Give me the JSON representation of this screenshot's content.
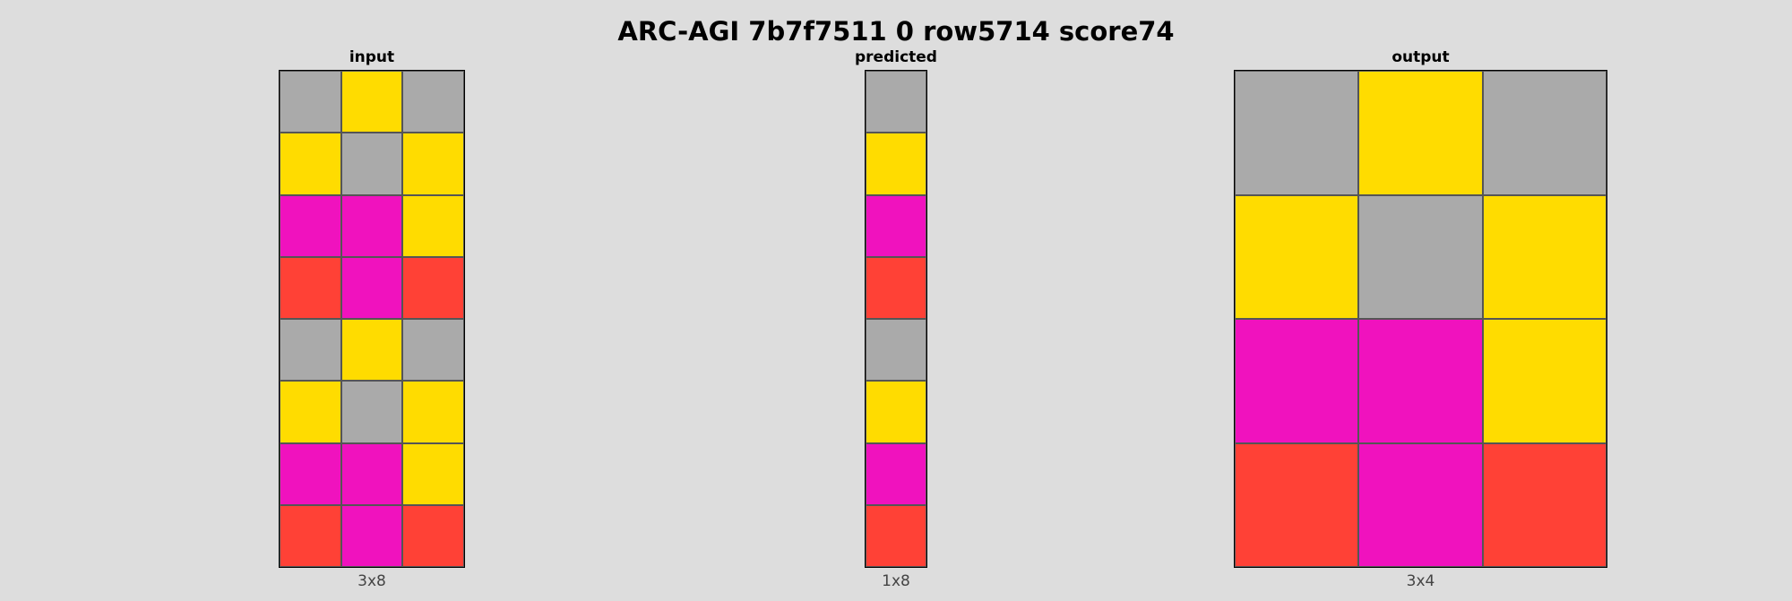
{
  "title": "ARC-AGI 7b7f7511 0 row5714 score74",
  "colors": {
    "0": "#000000",
    "1": "#0074d9",
    "2": "#ff4136",
    "3": "#2ecc40",
    "4": "#ffdc00",
    "5": "#aaaaaa",
    "6": "#f012be",
    "7": "#ff851b",
    "8": "#7fdbff",
    "9": "#870c25"
  },
  "panels": {
    "input": {
      "label": "input",
      "dims": "3x8",
      "grid": [
        [
          5,
          4,
          5
        ],
        [
          4,
          5,
          4
        ],
        [
          6,
          6,
          4
        ],
        [
          2,
          6,
          2
        ],
        [
          5,
          4,
          5
        ],
        [
          4,
          5,
          4
        ],
        [
          6,
          6,
          4
        ],
        [
          2,
          6,
          2
        ]
      ]
    },
    "predicted": {
      "label": "predicted",
      "dims": "1x8",
      "grid": [
        [
          5
        ],
        [
          4
        ],
        [
          6
        ],
        [
          2
        ],
        [
          5
        ],
        [
          4
        ],
        [
          6
        ],
        [
          2
        ]
      ]
    },
    "output": {
      "label": "output",
      "dims": "3x4",
      "grid": [
        [
          5,
          4,
          5
        ],
        [
          4,
          5,
          4
        ],
        [
          6,
          6,
          4
        ],
        [
          2,
          6,
          2
        ]
      ]
    }
  }
}
